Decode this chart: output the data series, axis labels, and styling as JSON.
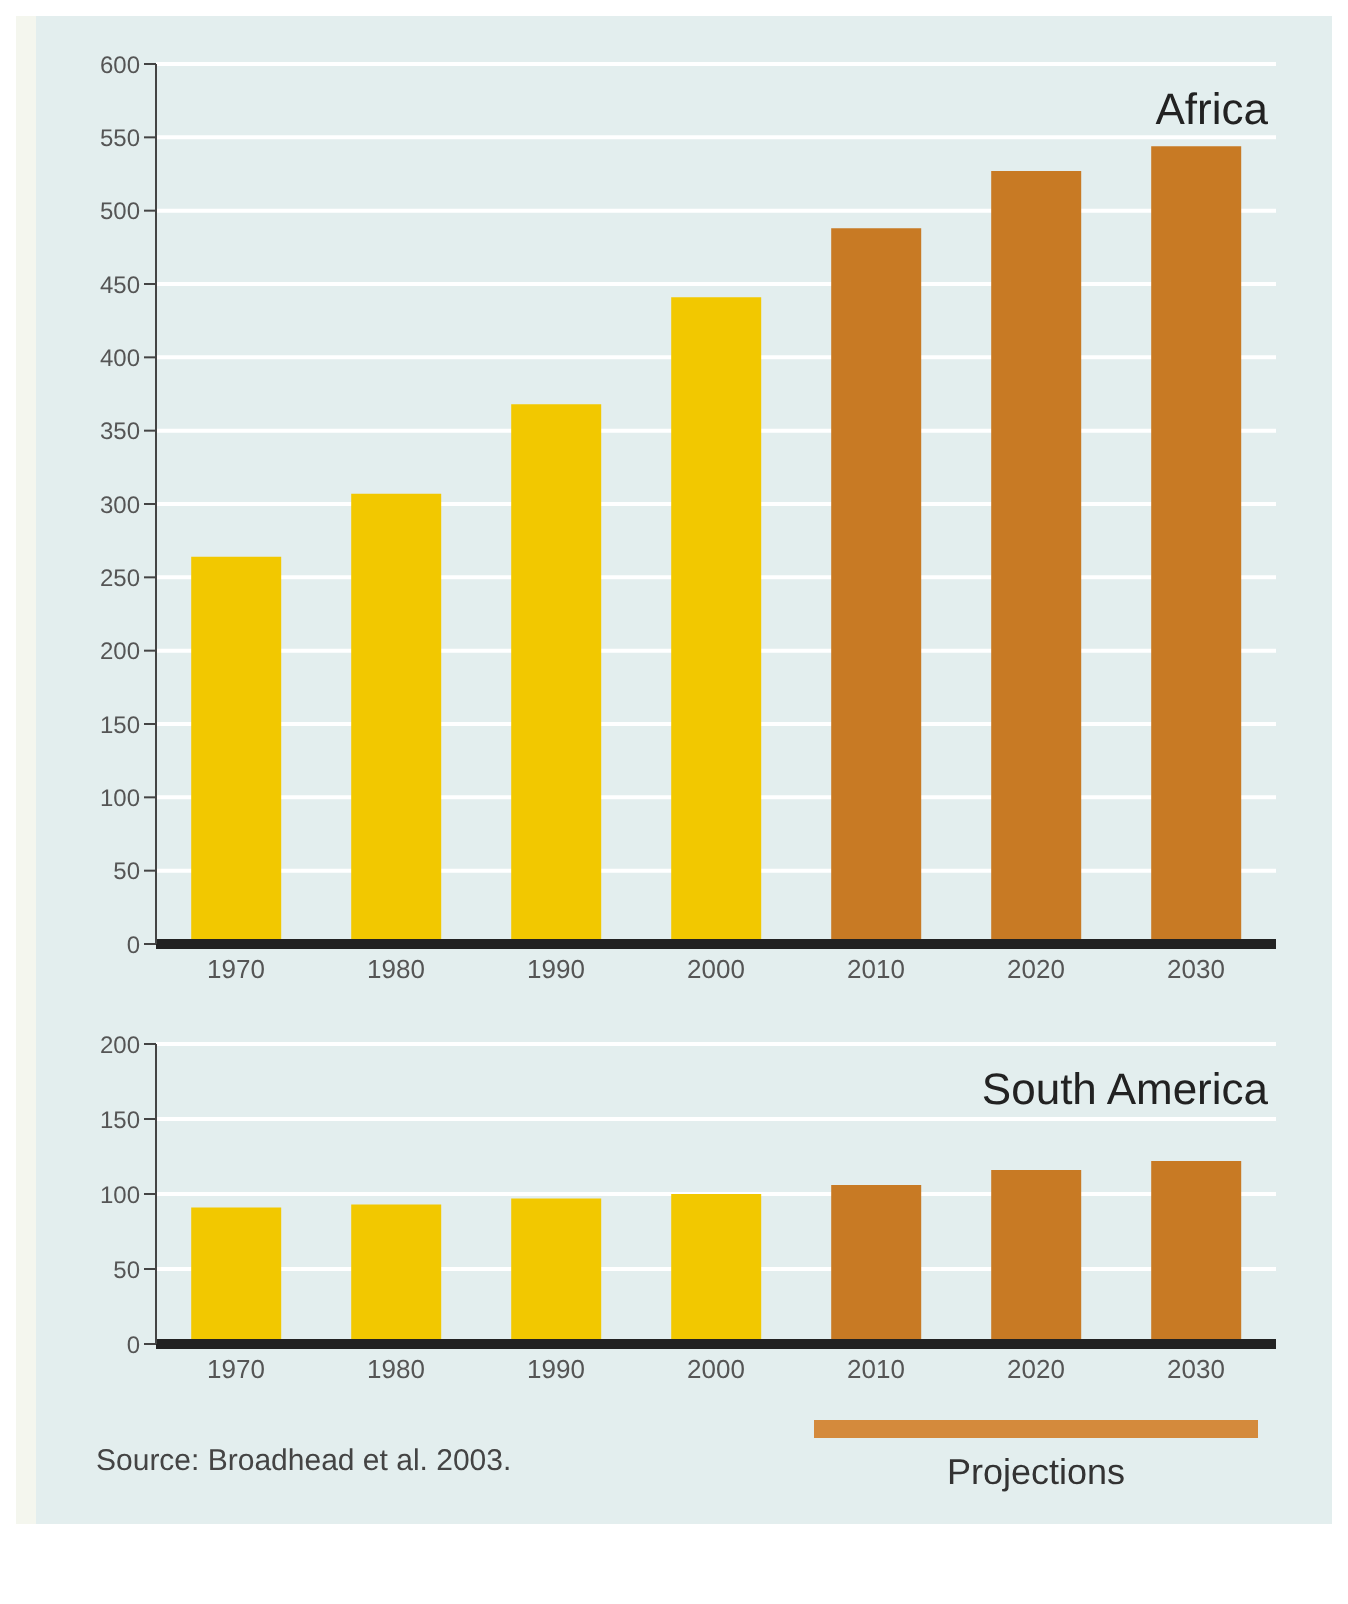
{
  "chart_data": [
    {
      "type": "bar",
      "title": "Africa",
      "categories": [
        "1970",
        "1980",
        "1990",
        "2000",
        "2010",
        "2020",
        "2030"
      ],
      "values": [
        264,
        307,
        368,
        441,
        488,
        527,
        544
      ],
      "colors": [
        "#f2c800",
        "#f2c800",
        "#f2c800",
        "#f2c800",
        "#c87a24",
        "#c87a24",
        "#c87a24"
      ],
      "ylim": [
        0,
        600
      ],
      "yticks": [
        0,
        50,
        100,
        150,
        200,
        250,
        300,
        350,
        400,
        450,
        500,
        550,
        600
      ],
      "grid": "y"
    },
    {
      "type": "bar",
      "title": "South America",
      "categories": [
        "1970",
        "1980",
        "1990",
        "2000",
        "2010",
        "2020",
        "2030"
      ],
      "values": [
        91,
        93,
        97,
        100,
        106,
        116,
        122
      ],
      "colors": [
        "#f2c800",
        "#f2c800",
        "#f2c800",
        "#f2c800",
        "#c87a24",
        "#c87a24",
        "#c87a24"
      ],
      "ylim": [
        0,
        200
      ],
      "yticks": [
        0,
        50,
        100,
        150,
        200
      ],
      "grid": "y",
      "annotations": [
        "Source: Broadhead et al. 2003.",
        "Projections"
      ]
    }
  ]
}
